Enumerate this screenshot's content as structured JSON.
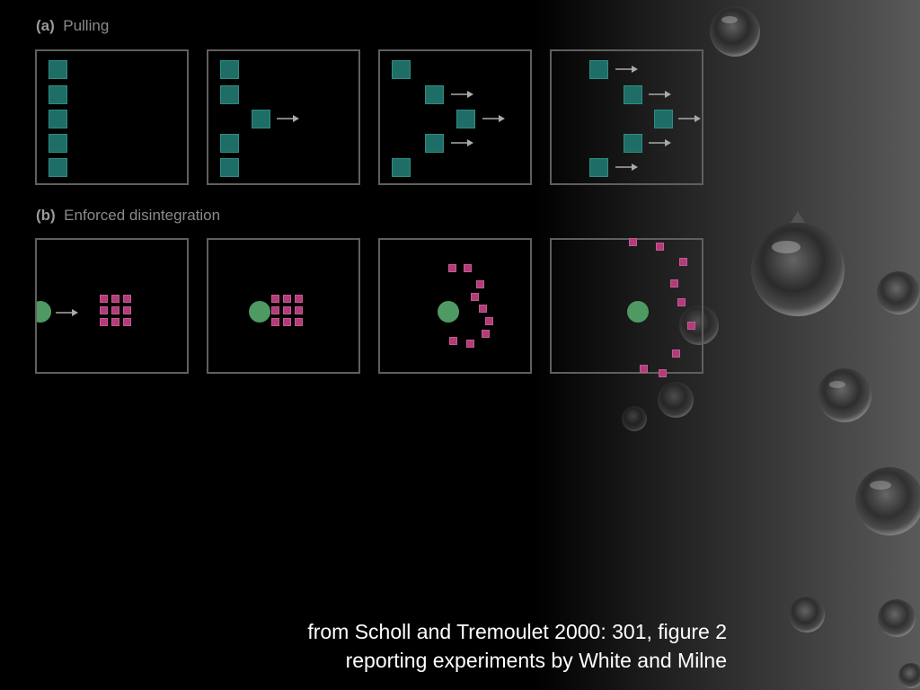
{
  "figure": {
    "part_a": {
      "letter": "(a)",
      "title": "Pulling"
    },
    "part_b": {
      "letter": "(b)",
      "title": "Enforced disintegration"
    }
  },
  "caption": {
    "line1": "from Scholl and Tremoulet 2000: 301, figure 2",
    "line2": "reporting experiments by White and Milne"
  },
  "colors": {
    "background": "#000000",
    "square_teal": "#1f6d67",
    "square_pink": "#b23c79",
    "ball_green": "#4f9a63",
    "panel_border": "#5f5f5f",
    "label_gray": "#8a8a8a"
  }
}
